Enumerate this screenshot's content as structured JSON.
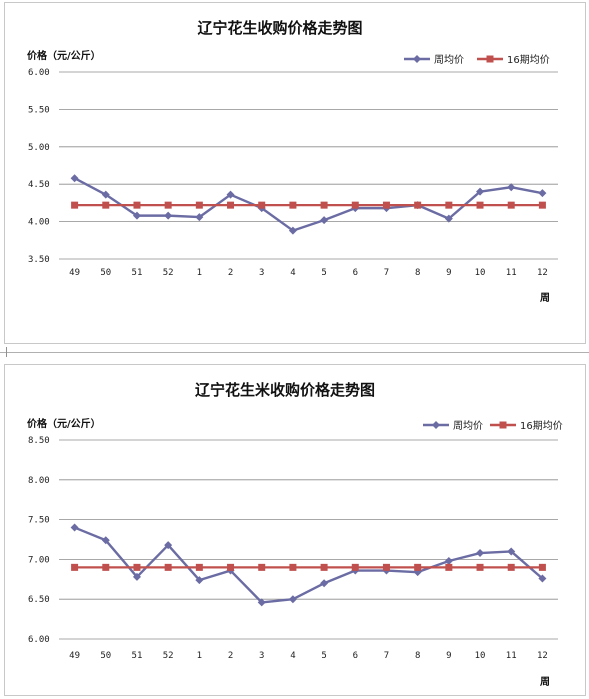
{
  "chart_data": [
    {
      "type": "line",
      "title": "辽宁花生收购价格走势图",
      "ylabel": "价格（元/公斤）",
      "xlabel": "周",
      "categories": [
        "49",
        "50",
        "51",
        "52",
        "1",
        "2",
        "3",
        "4",
        "5",
        "6",
        "7",
        "8",
        "9",
        "10",
        "11",
        "12"
      ],
      "ylim": [
        3.5,
        6.0
      ],
      "yticks": [
        "6.00",
        "5.50",
        "5.00",
        "4.50",
        "4.00",
        "3.50"
      ],
      "grid": true,
      "legend_position": "top-right",
      "series": [
        {
          "name": "周均价",
          "color": "#6b6ca3",
          "marker": "diamond",
          "values": [
            4.58,
            4.36,
            4.08,
            4.08,
            4.06,
            4.36,
            4.18,
            3.88,
            4.02,
            4.18,
            4.18,
            4.22,
            4.04,
            4.4,
            4.46,
            4.38
          ]
        },
        {
          "name": "16期均价",
          "color": "#c0504d",
          "marker": "square",
          "values": [
            4.22,
            4.22,
            4.22,
            4.22,
            4.22,
            4.22,
            4.22,
            4.22,
            4.22,
            4.22,
            4.22,
            4.22,
            4.22,
            4.22,
            4.22,
            4.22
          ]
        }
      ]
    },
    {
      "type": "line",
      "title": "辽宁花生米收购价格走势图",
      "ylabel": "价格（元/公斤）",
      "xlabel": "周",
      "categories": [
        "49",
        "50",
        "51",
        "52",
        "1",
        "2",
        "3",
        "4",
        "5",
        "6",
        "7",
        "8",
        "9",
        "10",
        "11",
        "12"
      ],
      "ylim": [
        6.0,
        8.5
      ],
      "yticks": [
        "8.50",
        "8.00",
        "7.50",
        "7.00",
        "6.50",
        "6.00"
      ],
      "grid": true,
      "legend_position": "top-right",
      "series": [
        {
          "name": "周均价",
          "color": "#6b6ca3",
          "marker": "diamond",
          "values": [
            7.4,
            7.24,
            6.78,
            7.18,
            6.74,
            6.86,
            6.46,
            6.5,
            6.7,
            6.86,
            6.86,
            6.84,
            6.98,
            7.08,
            7.1,
            6.76
          ]
        },
        {
          "name": "16期均价",
          "color": "#c0504d",
          "marker": "square",
          "values": [
            6.9,
            6.9,
            6.9,
            6.9,
            6.9,
            6.9,
            6.9,
            6.9,
            6.9,
            6.9,
            6.9,
            6.9,
            6.9,
            6.9,
            6.9,
            6.9
          ]
        }
      ]
    }
  ]
}
